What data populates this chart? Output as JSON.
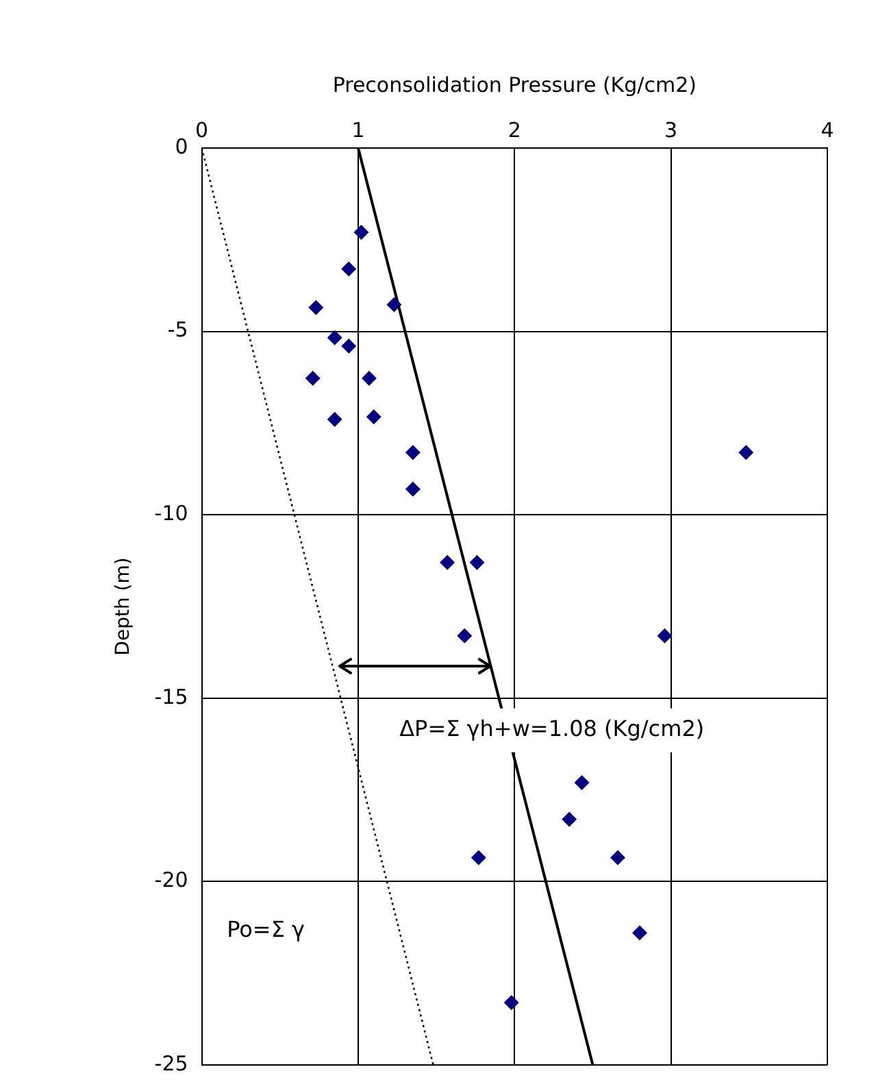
{
  "chart_data": {
    "type": "scatter",
    "xlabel": "Preconsolidation Pressure (Kg/cm2)",
    "ylabel": "Depth (m)",
    "xlim": [
      0,
      4
    ],
    "xticks": [
      0,
      1,
      2,
      3,
      4
    ],
    "ylim": [
      -25,
      0
    ],
    "yticks": [
      -25,
      -20,
      -15,
      -10,
      -5,
      0
    ],
    "grid": true,
    "legend": false,
    "marker": "diamond",
    "series": [
      {
        "color": "#000080",
        "x": [
          1.02,
          0.94,
          0.73,
          1.23,
          0.85,
          0.94,
          0.71,
          1.07,
          0.85,
          1.1,
          1.35,
          3.48,
          1.35,
          1.57,
          1.76,
          1.68,
          2.96,
          2.43,
          2.35,
          1.77,
          2.66,
          2.8,
          1.98
        ],
        "values": [
          -2.3,
          -3.3,
          -4.35,
          -4.27,
          -5.17,
          -5.4,
          -6.28,
          -6.28,
          -7.4,
          -7.33,
          -8.3,
          -8.3,
          -9.3,
          -11.3,
          -11.3,
          -13.3,
          -13.3,
          -17.3,
          -18.3,
          -19.35,
          -19.35,
          -21.4,
          -23.3
        ]
      },
      {
        "type": "line",
        "color": "#000000",
        "line_style": "solid",
        "marker": "none",
        "x": [
          1.0,
          2.5
        ],
        "values": [
          0,
          -25
        ]
      },
      {
        "type": "line",
        "color": "#000000",
        "line_style": "dotted",
        "marker": "none",
        "x": [
          0,
          1.48
        ],
        "values": [
          0,
          -25
        ]
      }
    ],
    "annotations": [
      "ΔP=Σ γh+w=1.08 (Kg/cm2)",
      "Po=Σ γ"
    ]
  }
}
